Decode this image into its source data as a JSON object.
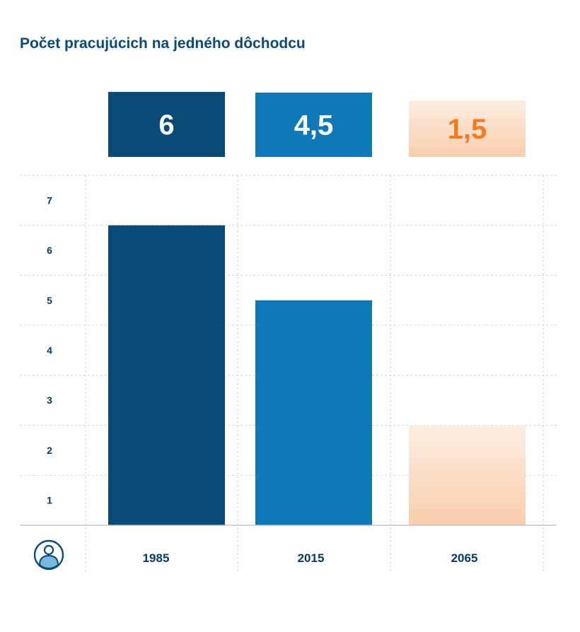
{
  "page": {
    "title": "Počet pracujúcich na jedného dôchodcu"
  },
  "icons": {
    "axis_icon": "person-icon"
  },
  "chart_data": {
    "type": "bar",
    "title": "Počet pracujúcich na jedného dôchodcu",
    "categories": [
      "1985",
      "2015",
      "2065"
    ],
    "values": [
      6,
      4.5,
      1.5
    ],
    "value_labels": [
      "6",
      "4,5",
      "1,5"
    ],
    "y_ticks": [
      1,
      2,
      3,
      4,
      5,
      6,
      7
    ],
    "ylim": [
      0,
      7
    ],
    "grid": true,
    "colors": {
      "bar_1985": "#094a77",
      "bar_2015": "#0f78b9",
      "bar_2065_top": "#fdeee2",
      "bar_2065_bottom": "#f8ceac",
      "label_light": "#ffffff",
      "label_2065": "#f07b22",
      "text": "#0a3a63",
      "grid": "#cfd4d9"
    }
  }
}
